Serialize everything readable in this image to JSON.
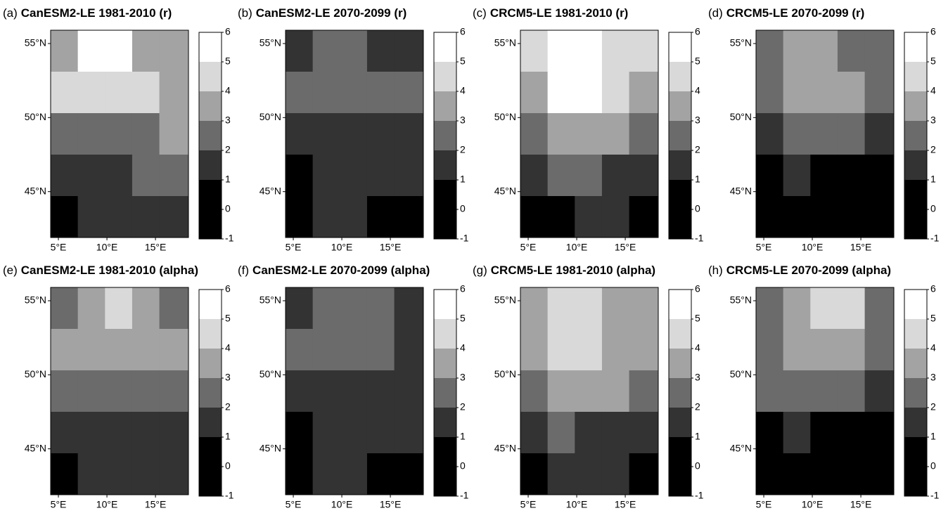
{
  "chart_data": [
    {
      "type": "map",
      "label": "(a)",
      "title": "CanESM2-LE 1981-2010 (r)",
      "lon_edges": [
        4.2,
        7.0,
        9.8,
        12.6,
        15.4,
        18.4
      ],
      "lat_edges": [
        55.9,
        53.1,
        50.3,
        47.5,
        44.7,
        41.9
      ],
      "values": [
        [
          3.5,
          5.5,
          5.5,
          3.5,
          3.5
        ],
        [
          4.5,
          4.5,
          4.5,
          4.5,
          3.5
        ],
        [
          2.5,
          2.5,
          2.5,
          2.5,
          3.5
        ],
        [
          1.5,
          1.5,
          1.5,
          2.5,
          2.5
        ],
        [
          0.5,
          1.5,
          1.5,
          1.5,
          1.5
        ]
      ],
      "xlim": [
        4.2,
        18.4
      ],
      "ylim": [
        41.9,
        55.9
      ],
      "xticks": [
        {
          "value": 5,
          "label": "5°E"
        },
        {
          "value": 10,
          "label": "10°E"
        },
        {
          "value": 15,
          "label": "15°E"
        }
      ],
      "yticks": [
        {
          "value": 45,
          "label": "45°N"
        },
        {
          "value": 50,
          "label": "50°N"
        },
        {
          "value": 55,
          "label": "55°N"
        }
      ],
      "colorbar": {
        "breaks": [
          -1,
          1,
          2,
          3,
          4,
          5,
          6
        ],
        "colors": [
          "#000000",
          "#333333",
          "#6b6b6b",
          "#a3a3a3",
          "#d9d9d9",
          "#ffffff"
        ],
        "ticks": [
          -1,
          0,
          1,
          2,
          3,
          4,
          5,
          6
        ]
      }
    },
    {
      "type": "map",
      "label": "(b)",
      "title": "CanESM2-LE 2070-2099 (r)",
      "lon_edges": [
        4.2,
        7.0,
        9.8,
        12.6,
        15.4,
        18.4
      ],
      "lat_edges": [
        55.9,
        53.1,
        50.3,
        47.5,
        44.7,
        41.9
      ],
      "values": [
        [
          1.5,
          2.5,
          2.5,
          1.5,
          1.5
        ],
        [
          2.5,
          2.5,
          2.5,
          2.5,
          2.5
        ],
        [
          1.5,
          1.5,
          1.5,
          1.5,
          1.5
        ],
        [
          0.5,
          1.5,
          1.5,
          1.5,
          1.5
        ],
        [
          0.5,
          1.5,
          1.5,
          0.5,
          0.5
        ]
      ],
      "xlim": [
        4.2,
        18.4
      ],
      "ylim": [
        41.9,
        55.9
      ],
      "xticks": [
        {
          "value": 5,
          "label": "5°E"
        },
        {
          "value": 10,
          "label": "10°E"
        },
        {
          "value": 15,
          "label": "15°E"
        }
      ],
      "yticks": [
        {
          "value": 45,
          "label": "45°N"
        },
        {
          "value": 50,
          "label": "50°N"
        },
        {
          "value": 55,
          "label": "55°N"
        }
      ],
      "colorbar": {
        "breaks": [
          -1,
          1,
          2,
          3,
          4,
          5,
          6
        ],
        "colors": [
          "#000000",
          "#333333",
          "#6b6b6b",
          "#a3a3a3",
          "#d9d9d9",
          "#ffffff"
        ],
        "ticks": [
          -1,
          0,
          1,
          2,
          3,
          4,
          5,
          6
        ]
      }
    },
    {
      "type": "map",
      "label": "(c)",
      "title": "CRCM5-LE 1981-2010 (r)",
      "lon_edges": [
        4.2,
        7.0,
        9.8,
        12.6,
        15.4,
        18.4
      ],
      "lat_edges": [
        55.9,
        53.1,
        50.3,
        47.5,
        44.7,
        41.9
      ],
      "values": [
        [
          4.5,
          5.5,
          5.5,
          4.5,
          4.5
        ],
        [
          3.5,
          5.5,
          5.5,
          4.5,
          3.5
        ],
        [
          2.5,
          3.5,
          3.5,
          3.5,
          2.5
        ],
        [
          1.5,
          2.5,
          2.5,
          1.5,
          1.5
        ],
        [
          0.5,
          0.5,
          1.5,
          1.5,
          0.5
        ]
      ],
      "xlim": [
        4.2,
        18.4
      ],
      "ylim": [
        41.9,
        55.9
      ],
      "xticks": [
        {
          "value": 5,
          "label": "5°E"
        },
        {
          "value": 10,
          "label": "10°E"
        },
        {
          "value": 15,
          "label": "15°E"
        }
      ],
      "yticks": [
        {
          "value": 45,
          "label": "45°N"
        },
        {
          "value": 50,
          "label": "50°N"
        },
        {
          "value": 55,
          "label": "55°N"
        }
      ],
      "colorbar": {
        "breaks": [
          -1,
          1,
          2,
          3,
          4,
          5,
          6
        ],
        "colors": [
          "#000000",
          "#333333",
          "#6b6b6b",
          "#a3a3a3",
          "#d9d9d9",
          "#ffffff"
        ],
        "ticks": [
          -1,
          0,
          1,
          2,
          3,
          4,
          5,
          6
        ]
      }
    },
    {
      "type": "map",
      "label": "(d)",
      "title": "CRCM5-LE 2070-2099 (r)",
      "lon_edges": [
        4.2,
        7.0,
        9.8,
        12.6,
        15.4,
        18.4
      ],
      "lat_edges": [
        55.9,
        53.1,
        50.3,
        47.5,
        44.7,
        41.9
      ],
      "values": [
        [
          2.5,
          3.5,
          3.5,
          2.5,
          2.5
        ],
        [
          2.5,
          3.5,
          3.5,
          3.5,
          2.5
        ],
        [
          1.5,
          2.5,
          2.5,
          2.5,
          1.5
        ],
        [
          0.5,
          1.5,
          0.5,
          0.5,
          0.5
        ],
        [
          0.5,
          0.5,
          0.5,
          0.5,
          0.5
        ]
      ],
      "xlim": [
        4.2,
        18.4
      ],
      "ylim": [
        41.9,
        55.9
      ],
      "xticks": [
        {
          "value": 5,
          "label": "5°E"
        },
        {
          "value": 10,
          "label": "10°E"
        },
        {
          "value": 15,
          "label": "15°E"
        }
      ],
      "yticks": [
        {
          "value": 45,
          "label": "45°N"
        },
        {
          "value": 50,
          "label": "50°N"
        },
        {
          "value": 55,
          "label": "55°N"
        }
      ],
      "colorbar": {
        "breaks": [
          -1,
          1,
          2,
          3,
          4,
          5,
          6
        ],
        "colors": [
          "#000000",
          "#333333",
          "#6b6b6b",
          "#a3a3a3",
          "#d9d9d9",
          "#ffffff"
        ],
        "ticks": [
          -1,
          0,
          1,
          2,
          3,
          4,
          5,
          6
        ]
      }
    },
    {
      "type": "map",
      "label": "(e)",
      "title": "CanESM2-LE 1981-2010 (alpha)",
      "lon_edges": [
        4.2,
        7.0,
        9.8,
        12.6,
        15.4,
        18.4
      ],
      "lat_edges": [
        55.9,
        53.1,
        50.3,
        47.5,
        44.7,
        41.9
      ],
      "values": [
        [
          2.5,
          3.5,
          4.5,
          3.5,
          2.5
        ],
        [
          3.5,
          3.5,
          3.5,
          3.5,
          3.5
        ],
        [
          2.5,
          2.5,
          2.5,
          2.5,
          2.5
        ],
        [
          1.5,
          1.5,
          1.5,
          1.5,
          1.5
        ],
        [
          0.5,
          1.5,
          1.5,
          1.5,
          1.5
        ]
      ],
      "xlim": [
        4.2,
        18.4
      ],
      "ylim": [
        41.9,
        55.9
      ],
      "xticks": [
        {
          "value": 5,
          "label": "5°E"
        },
        {
          "value": 10,
          "label": "10°E"
        },
        {
          "value": 15,
          "label": "15°E"
        }
      ],
      "yticks": [
        {
          "value": 45,
          "label": "45°N"
        },
        {
          "value": 50,
          "label": "50°N"
        },
        {
          "value": 55,
          "label": "55°N"
        }
      ],
      "colorbar": {
        "breaks": [
          -1,
          1,
          2,
          3,
          4,
          5,
          6
        ],
        "colors": [
          "#000000",
          "#333333",
          "#6b6b6b",
          "#a3a3a3",
          "#d9d9d9",
          "#ffffff"
        ],
        "ticks": [
          -1,
          0,
          1,
          2,
          3,
          4,
          5,
          6
        ]
      }
    },
    {
      "type": "map",
      "label": "(f)",
      "title": "CanESM2-LE 2070-2099 (alpha)",
      "lon_edges": [
        4.2,
        7.0,
        9.8,
        12.6,
        15.4,
        18.4
      ],
      "lat_edges": [
        55.9,
        53.1,
        50.3,
        47.5,
        44.7,
        41.9
      ],
      "values": [
        [
          1.5,
          2.5,
          2.5,
          2.5,
          1.5
        ],
        [
          2.5,
          2.5,
          2.5,
          2.5,
          1.5
        ],
        [
          1.5,
          1.5,
          1.5,
          1.5,
          1.5
        ],
        [
          0.5,
          1.5,
          1.5,
          1.5,
          1.5
        ],
        [
          0.5,
          1.5,
          1.5,
          0.5,
          0.5
        ]
      ],
      "xlim": [
        4.2,
        18.4
      ],
      "ylim": [
        41.9,
        55.9
      ],
      "xticks": [
        {
          "value": 5,
          "label": "5°E"
        },
        {
          "value": 10,
          "label": "10°E"
        },
        {
          "value": 15,
          "label": "15°E"
        }
      ],
      "yticks": [
        {
          "value": 45,
          "label": "45°N"
        },
        {
          "value": 50,
          "label": "50°N"
        },
        {
          "value": 55,
          "label": "55°N"
        }
      ],
      "colorbar": {
        "breaks": [
          -1,
          1,
          2,
          3,
          4,
          5,
          6
        ],
        "colors": [
          "#000000",
          "#333333",
          "#6b6b6b",
          "#a3a3a3",
          "#d9d9d9",
          "#ffffff"
        ],
        "ticks": [
          -1,
          0,
          1,
          2,
          3,
          4,
          5,
          6
        ]
      }
    },
    {
      "type": "map",
      "label": "(g)",
      "title": "CRCM5-LE 1981-2010 (alpha)",
      "lon_edges": [
        4.2,
        7.0,
        9.8,
        12.6,
        15.4,
        18.4
      ],
      "lat_edges": [
        55.9,
        53.1,
        50.3,
        47.5,
        44.7,
        41.9
      ],
      "values": [
        [
          3.5,
          4.5,
          4.5,
          3.5,
          3.5
        ],
        [
          3.5,
          4.5,
          4.5,
          3.5,
          3.5
        ],
        [
          2.5,
          3.5,
          3.5,
          3.5,
          2.5
        ],
        [
          1.5,
          2.5,
          1.5,
          1.5,
          1.5
        ],
        [
          0.5,
          1.5,
          1.5,
          1.5,
          0.5
        ]
      ],
      "xlim": [
        4.2,
        18.4
      ],
      "ylim": [
        41.9,
        55.9
      ],
      "xticks": [
        {
          "value": 5,
          "label": "5°E"
        },
        {
          "value": 10,
          "label": "10°E"
        },
        {
          "value": 15,
          "label": "15°E"
        }
      ],
      "yticks": [
        {
          "value": 45,
          "label": "45°N"
        },
        {
          "value": 50,
          "label": "50°N"
        },
        {
          "value": 55,
          "label": "55°N"
        }
      ],
      "colorbar": {
        "breaks": [
          -1,
          1,
          2,
          3,
          4,
          5,
          6
        ],
        "colors": [
          "#000000",
          "#333333",
          "#6b6b6b",
          "#a3a3a3",
          "#d9d9d9",
          "#ffffff"
        ],
        "ticks": [
          -1,
          0,
          1,
          2,
          3,
          4,
          5,
          6
        ]
      }
    },
    {
      "type": "map",
      "label": "(h)",
      "title": "CRCM5-LE 2070-2099 (alpha)",
      "lon_edges": [
        4.2,
        7.0,
        9.8,
        12.6,
        15.4,
        18.4
      ],
      "lat_edges": [
        55.9,
        53.1,
        50.3,
        47.5,
        44.7,
        41.9
      ],
      "values": [
        [
          2.5,
          3.5,
          4.5,
          4.5,
          2.5
        ],
        [
          2.5,
          3.5,
          3.5,
          3.5,
          2.5
        ],
        [
          2.5,
          2.5,
          2.5,
          2.5,
          1.5
        ],
        [
          0.5,
          1.5,
          0.5,
          0.5,
          0.5
        ],
        [
          0.5,
          0.5,
          0.5,
          0.5,
          0.5
        ]
      ],
      "xlim": [
        4.2,
        18.4
      ],
      "ylim": [
        41.9,
        55.9
      ],
      "xticks": [
        {
          "value": 5,
          "label": "5°E"
        },
        {
          "value": 10,
          "label": "10°E"
        },
        {
          "value": 15,
          "label": "15°E"
        }
      ],
      "yticks": [
        {
          "value": 45,
          "label": "45°N"
        },
        {
          "value": 50,
          "label": "50°N"
        },
        {
          "value": 55,
          "label": "55°N"
        }
      ],
      "colorbar": {
        "breaks": [
          -1,
          1,
          2,
          3,
          4,
          5,
          6
        ],
        "colors": [
          "#000000",
          "#333333",
          "#6b6b6b",
          "#a3a3a3",
          "#d9d9d9",
          "#ffffff"
        ],
        "ticks": [
          -1,
          0,
          1,
          2,
          3,
          4,
          5,
          6
        ]
      }
    }
  ]
}
